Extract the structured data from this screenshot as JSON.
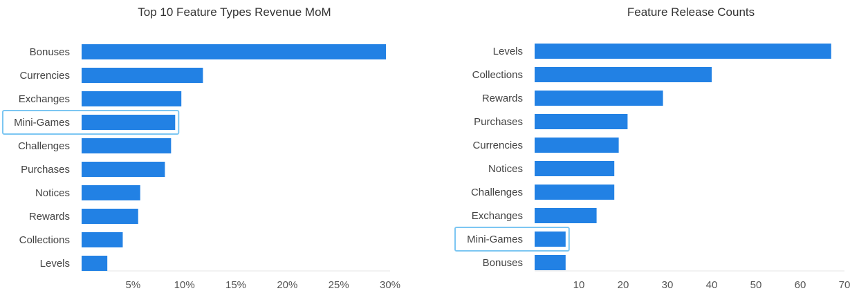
{
  "colors": {
    "bar": "#2281e4",
    "highlight": "#7cc6f2",
    "axis": "#e6e6e6",
    "text": "#444444"
  },
  "chart_data": [
    {
      "type": "bar",
      "orientation": "horizontal",
      "title": "Top 10 Feature Types Revenue MoM",
      "categories": [
        "Bonuses",
        "Currencies",
        "Exchanges",
        "Mini-Games",
        "Challenges",
        "Purchases",
        "Notices",
        "Rewards",
        "Collections",
        "Levels"
      ],
      "values": [
        29.6,
        11.8,
        9.7,
        9.1,
        8.7,
        8.1,
        5.7,
        5.5,
        4.0,
        2.5
      ],
      "xlim": [
        0,
        30
      ],
      "ticks": [
        5,
        10,
        15,
        20,
        25,
        30
      ],
      "tick_labels": [
        "5%",
        "10%",
        "15%",
        "20%",
        "25%",
        "30%"
      ],
      "highlighted": "Mini-Games",
      "grid": false
    },
    {
      "type": "bar",
      "orientation": "horizontal",
      "title": "Feature Release Counts",
      "categories": [
        "Levels",
        "Collections",
        "Rewards",
        "Purchases",
        "Currencies",
        "Notices",
        "Challenges",
        "Exchanges",
        "Mini-Games",
        "Bonuses"
      ],
      "values": [
        67,
        40,
        29,
        21,
        19,
        18,
        18,
        14,
        7,
        7
      ],
      "xlim": [
        0,
        70
      ],
      "ticks": [
        10,
        20,
        30,
        40,
        50,
        60,
        70
      ],
      "tick_labels": [
        "10",
        "20",
        "30",
        "40",
        "50",
        "60",
        "70"
      ],
      "highlighted": "Mini-Games",
      "grid": false
    }
  ]
}
